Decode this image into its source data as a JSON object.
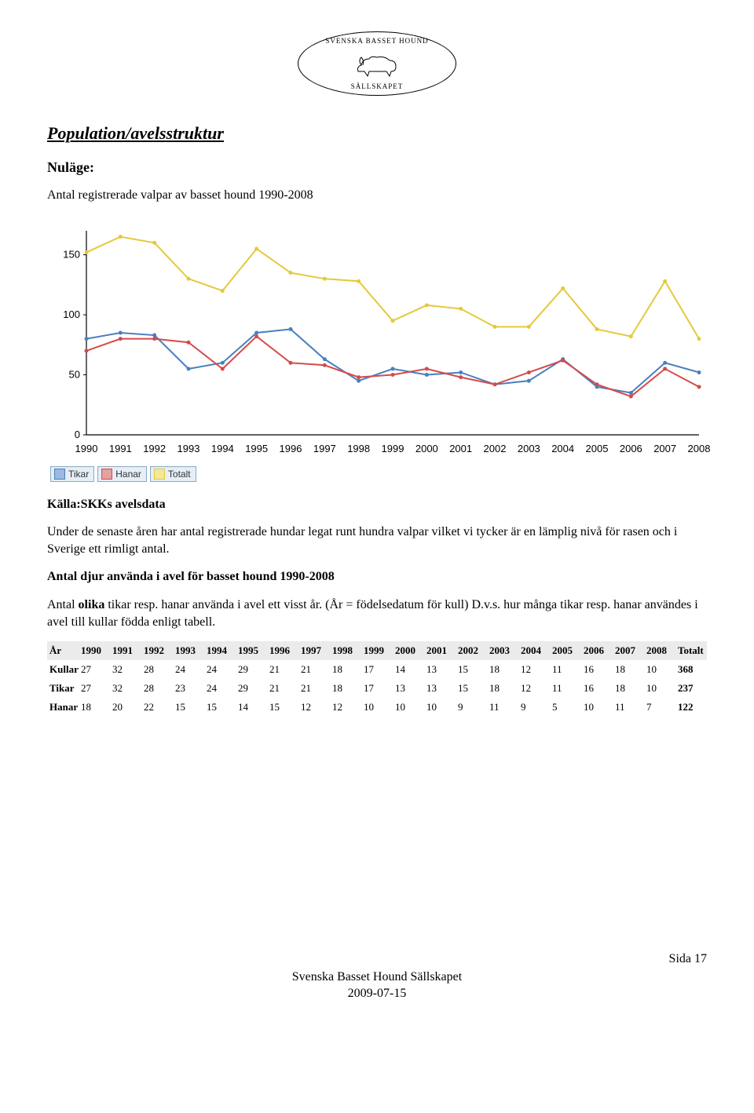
{
  "logo": {
    "top_text": "SVENSKA BASSET HOUND",
    "bottom_text": "SÄLLSKAPET"
  },
  "heading_section": "Population/avelsstruktur",
  "heading_nulage": "Nuläge:",
  "heading_chart": "Antal registrerade valpar av basset hound 1990-2008",
  "source_label": "Källa:SKKs avelsdata",
  "para_intro": "Under de senaste åren har antal registrerade hundar legat runt hundra valpar vilket vi tycker är en lämplig nivå för rasen och i Sverige ett rimligt antal.",
  "heading_avel": "Antal djur använda i avel för basset hound 1990-2008",
  "para_avel_line1_prefix": "Antal ",
  "para_avel_line1_bold": "olika",
  "para_avel_line1_rest": " tikar resp. hanar använda i avel ett visst år. (År = födelsedatum för kull) D.v.s. hur många tikar resp. hanar användes i avel till kullar födda enligt tabell.",
  "chart": {
    "type": "line",
    "years": [
      1990,
      1991,
      1992,
      1993,
      1994,
      1995,
      1996,
      1997,
      1998,
      1999,
      2000,
      2001,
      2002,
      2003,
      2004,
      2005,
      2006,
      2007,
      2008
    ],
    "ylim": [
      0,
      170
    ],
    "yticks": [
      0,
      50,
      100,
      150
    ],
    "series": {
      "tikar": {
        "label": "Tikar",
        "color": "#4a7fbf",
        "values": [
          80,
          85,
          83,
          55,
          60,
          85,
          88,
          63,
          45,
          55,
          50,
          52,
          42,
          45,
          63,
          40,
          35,
          60,
          52
        ]
      },
      "hanar": {
        "label": "Hanar",
        "color": "#d64a4a",
        "values": [
          70,
          80,
          80,
          77,
          55,
          82,
          60,
          58,
          48,
          50,
          55,
          48,
          42,
          52,
          62,
          42,
          32,
          55,
          40
        ]
      },
      "totalt": {
        "label": "Totalt",
        "color": "#e5c93a",
        "values": [
          152,
          165,
          160,
          130,
          120,
          155,
          135,
          130,
          128,
          95,
          108,
          105,
          90,
          90,
          122,
          88,
          82,
          128,
          80
        ]
      }
    },
    "swatch_fill": {
      "tikar": "#9cb9e0",
      "hanar": "#e6a0a0",
      "totalt": "#f3e89a"
    },
    "background": "#ffffff",
    "axis_color": "#000000",
    "tick_font": 13
  },
  "table": {
    "header_label_first": "År",
    "header_label_last": "Totalt",
    "years": [
      "1990",
      "1991",
      "1992",
      "1993",
      "1994",
      "1995",
      "1996",
      "1997",
      "1998",
      "1999",
      "2000",
      "2001",
      "2002",
      "2003",
      "2004",
      "2005",
      "2006",
      "2007",
      "2008"
    ],
    "rows": [
      {
        "label": "Kullar",
        "values": [
          "27",
          "32",
          "28",
          "24",
          "24",
          "29",
          "21",
          "21",
          "18",
          "17",
          "14",
          "13",
          "15",
          "18",
          "12",
          "11",
          "16",
          "18",
          "10"
        ],
        "total": "368"
      },
      {
        "label": "Tikar",
        "values": [
          "27",
          "32",
          "28",
          "23",
          "24",
          "29",
          "21",
          "21",
          "18",
          "17",
          "13",
          "13",
          "15",
          "18",
          "12",
          "11",
          "16",
          "18",
          "10"
        ],
        "total": "237"
      },
      {
        "label": "Hanar",
        "values": [
          "18",
          "20",
          "22",
          "15",
          "15",
          "14",
          "15",
          "12",
          "12",
          "10",
          "10",
          "10",
          "9",
          "11",
          "9",
          "5",
          "10",
          "11",
          "7"
        ],
        "total": "122"
      }
    ]
  },
  "footer": {
    "page": "Sida 17",
    "org": "Svenska Basset Hound Sällskapet",
    "date": "2009-07-15"
  }
}
